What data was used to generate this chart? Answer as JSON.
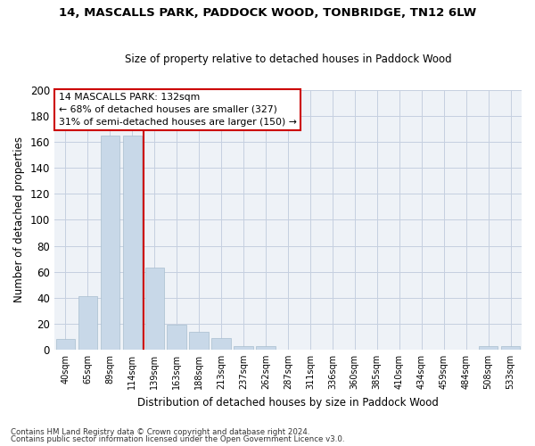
{
  "title1": "14, MASCALLS PARK, PADDOCK WOOD, TONBRIDGE, TN12 6LW",
  "title2": "Size of property relative to detached houses in Paddock Wood",
  "xlabel": "Distribution of detached houses by size in Paddock Wood",
  "ylabel": "Number of detached properties",
  "bar_color": "#c8d8e8",
  "bar_edge_color": "#a8bece",
  "categories": [
    "40sqm",
    "65sqm",
    "89sqm",
    "114sqm",
    "139sqm",
    "163sqm",
    "188sqm",
    "213sqm",
    "237sqm",
    "262sqm",
    "287sqm",
    "311sqm",
    "336sqm",
    "360sqm",
    "385sqm",
    "410sqm",
    "434sqm",
    "459sqm",
    "484sqm",
    "508sqm",
    "533sqm"
  ],
  "values": [
    8,
    41,
    165,
    165,
    63,
    19,
    14,
    9,
    3,
    3,
    0,
    0,
    0,
    0,
    0,
    0,
    0,
    0,
    0,
    3,
    3
  ],
  "ylim": [
    0,
    200
  ],
  "yticks": [
    0,
    20,
    40,
    60,
    80,
    100,
    120,
    140,
    160,
    180,
    200
  ],
  "vline_x": 4.0,
  "vline_color": "#cc0000",
  "annotation_line1": "14 MASCALLS PARK: 132sqm",
  "annotation_line2": "← 68% of detached houses are smaller (327)",
  "annotation_line3": "31% of semi-detached houses are larger (150) →",
  "annotation_box_color": "#cc0000",
  "footnote1": "Contains HM Land Registry data © Crown copyright and database right 2024.",
  "footnote2": "Contains public sector information licensed under the Open Government Licence v3.0.",
  "background_color": "#eef2f7",
  "grid_color": "#c5cfe0"
}
